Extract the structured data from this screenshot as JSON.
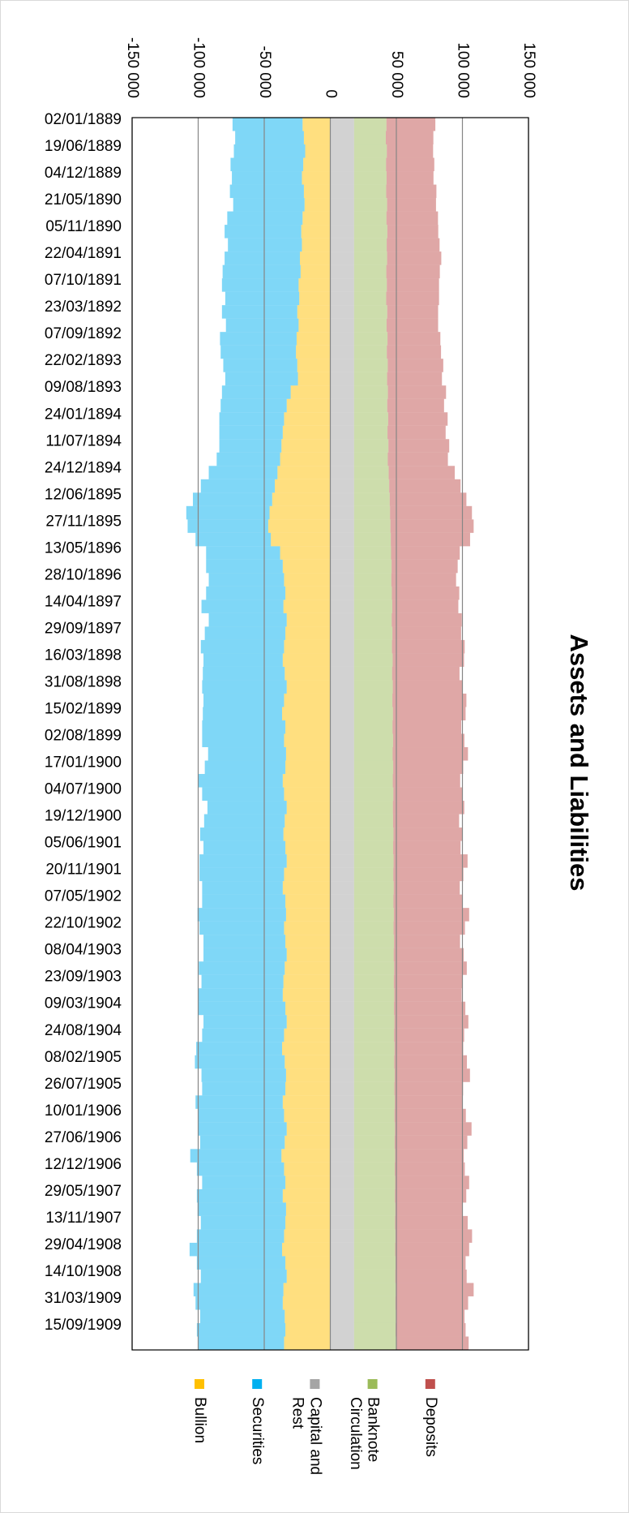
{
  "chart_data": {
    "type": "bar",
    "orientation": "horizontal",
    "stacked": true,
    "title": "Assets and Liabilities",
    "grid": true,
    "legend": "bottom",
    "xlim": [
      -150000,
      150000
    ],
    "xticks": [
      {
        "value": -150000,
        "label": "-150 000"
      },
      {
        "value": -100000,
        "label": "-100 000"
      },
      {
        "value": -50000,
        "label": "-50 000"
      },
      0,
      {
        "value": 50000,
        "label": "50 000"
      },
      {
        "value": 100000,
        "label": "100 000"
      },
      {
        "value": 150000,
        "label": "150 000"
      }
    ],
    "categories": [
      "02/01/1889",
      null,
      "19/06/1889",
      null,
      "04/12/1889",
      null,
      "21/05/1890",
      null,
      "05/11/1890",
      null,
      "22/04/1891",
      null,
      "07/10/1891",
      null,
      "23/03/1892",
      null,
      "07/09/1892",
      null,
      "22/02/1893",
      null,
      "09/08/1893",
      null,
      "24/01/1894",
      null,
      "11/07/1894",
      null,
      "24/12/1894",
      null,
      "12/06/1895",
      null,
      "27/11/1895",
      null,
      "13/05/1896",
      null,
      "28/10/1896",
      null,
      "14/04/1897",
      null,
      "29/09/1897",
      null,
      "16/03/1898",
      null,
      "31/08/1898",
      null,
      "15/02/1899",
      null,
      "02/08/1899",
      null,
      "17/01/1900",
      null,
      "04/07/1900",
      null,
      "19/12/1900",
      null,
      "05/06/1901",
      null,
      "20/11/1901",
      null,
      "07/05/1902",
      null,
      "22/10/1902",
      null,
      "08/04/1903",
      null,
      "23/09/1903",
      null,
      "09/03/1904",
      null,
      "24/08/1904",
      null,
      "08/02/1905",
      null,
      "26/07/1905",
      null,
      "10/01/1906",
      null,
      "27/06/1906",
      null,
      "12/12/1906",
      null,
      "29/05/1907",
      null,
      "13/11/1907",
      null,
      "29/04/1908",
      null,
      "14/10/1908",
      null,
      "31/03/1909",
      null,
      "15/09/1909",
      null
    ],
    "series": [
      {
        "name": "Bullion",
        "color": "#ffc000",
        "values": [
          -21000,
          -20000,
          -19000,
          -20500,
          -21500,
          -20000,
          -19500,
          -21000,
          -22000,
          -21500,
          -23000,
          -22500,
          -24000,
          -23500,
          -25000,
          -24000,
          -25500,
          -26000,
          -25000,
          -24500,
          -30000,
          -33000,
          -35000,
          -36000,
          -37000,
          -38000,
          -40000,
          -42000,
          -44000,
          -46000,
          -47000,
          -45000,
          -38000,
          -36000,
          -35000,
          -34000,
          -35500,
          -33000,
          -34000,
          -35000,
          -36000,
          -34500,
          -33000,
          -35000,
          -36500,
          -34000,
          -35000,
          -33500,
          -34000,
          -36000,
          -35000,
          -33000,
          -34500,
          -35500,
          -34000,
          -33000,
          -35000,
          -36000,
          -34000,
          -33500,
          -35000,
          -34000,
          -33000,
          -34500,
          -35500,
          -36000,
          -34000,
          -33000,
          -35000,
          -36500,
          -34500,
          -33500,
          -34000,
          -36000,
          -35000,
          -33000,
          -34500,
          -37000,
          -35000,
          -34000,
          -36000,
          -33500,
          -34000,
          -35000,
          -36500,
          -34000,
          -33000,
          -35500,
          -36000,
          -34500,
          -34000,
          -35000
        ]
      },
      {
        "name": "Securities",
        "color": "#00b0f0",
        "values": [
          -53000,
          -52000,
          -54000,
          -55000,
          -53000,
          -56000,
          -54000,
          -57000,
          -58000,
          -56000,
          -57000,
          -59000,
          -58000,
          -56000,
          -57000,
          -55000,
          -58000,
          -57000,
          -56000,
          -55000,
          -52000,
          -50000,
          -49000,
          -48000,
          -47000,
          -48000,
          -52000,
          -56000,
          -60000,
          -63000,
          -61000,
          -57000,
          -56000,
          -58000,
          -57000,
          -60000,
          -62000,
          -59000,
          -61000,
          -63000,
          -60000,
          -62000,
          -64000,
          -61000,
          -60000,
          -63000,
          -62000,
          -59000,
          -61000,
          -64000,
          -62000,
          -60000,
          -61000,
          -63000,
          -62000,
          -66000,
          -64000,
          -61000,
          -63000,
          -67000,
          -64000,
          -62000,
          -63000,
          -65000,
          -62000,
          -64000,
          -66000,
          -63000,
          -62000,
          -65000,
          -68000,
          -64000,
          -63000,
          -66000,
          -65000,
          -67000,
          -64000,
          -69000,
          -66000,
          -63000,
          -65000,
          -67000,
          -64000,
          -66000,
          -70000,
          -67000,
          -65000,
          -68000,
          -66000,
          -64000,
          -67000,
          -65000
        ]
      },
      {
        "name": "Capital and Rest",
        "color": "#a5a5a5",
        "values": [
          18000,
          18000,
          18000,
          18000,
          18000,
          18000,
          18000,
          18000,
          18000,
          18000,
          18000,
          18000,
          18000,
          18000,
          18000,
          18000,
          18000,
          18000,
          18000,
          18000,
          18000,
          18000,
          18000,
          18000,
          18000,
          18000,
          18000,
          18000,
          18000,
          18000,
          18000,
          18000,
          18000,
          18000,
          18000,
          18000,
          18000,
          18000,
          18000,
          18000,
          18000,
          18000,
          18000,
          18000,
          18000,
          18000,
          18000,
          18000,
          18000,
          18000,
          18000,
          18000,
          18000,
          18000,
          18000,
          18000,
          18000,
          18000,
          18000,
          18000,
          18000,
          18000,
          18000,
          18000,
          18000,
          18000,
          18000,
          18000,
          18000,
          18000,
          18000,
          18000,
          18000,
          18000,
          18000,
          18000,
          18000,
          18000,
          18000,
          18000,
          18000,
          18000,
          18000,
          18000,
          18000,
          18000,
          18000,
          18000,
          18000,
          18000,
          18000,
          18000
        ]
      },
      {
        "name": "Banknote Circulation",
        "color": "#9bbb59",
        "values": [
          24500,
          24000,
          24800,
          24200,
          24600,
          24300,
          25000,
          24500,
          25200,
          24700,
          25000,
          24400,
          24800,
          24300,
          25100,
          24600,
          25300,
          24800,
          25500,
          25000,
          25600,
          25100,
          25800,
          25300,
          26000,
          25500,
          26200,
          26600,
          27000,
          27200,
          27500,
          27800,
          28000,
          28400,
          28200,
          28600,
          28900,
          28500,
          29000,
          28700,
          29200,
          28800,
          29300,
          29000,
          29400,
          29100,
          29500,
          29200,
          29600,
          29300,
          29700,
          29400,
          29500,
          29800,
          29600,
          29900,
          29700,
          30000,
          29800,
          30100,
          29900,
          30200,
          30000,
          30300,
          30100,
          30400,
          30200,
          30500,
          30300,
          30600,
          30400,
          30700,
          30500,
          30800,
          30600,
          30900,
          30700,
          31000,
          30800,
          31100,
          30900,
          31200,
          31000,
          31300,
          31100,
          31400,
          31200,
          31500,
          31300,
          31600,
          31400,
          31700
        ]
      },
      {
        "name": "Deposits",
        "color": "#c0504d",
        "values": [
          37000,
          36000,
          35000,
          36500,
          35500,
          38000,
          37000,
          39000,
          38500,
          40000,
          41000,
          40500,
          39500,
          40000,
          38500,
          39000,
          40000,
          41000,
          42000,
          41500,
          44000,
          43000,
          45000,
          44000,
          46000,
          45500,
          50000,
          54000,
          58000,
          62000,
          63000,
          60000,
          52000,
          50000,
          49000,
          51000,
          50000,
          53000,
          52000,
          55000,
          54000,
          51000,
          53000,
          56000,
          55000,
          52000,
          54000,
          57000,
          53000,
          51000,
          52000,
          54000,
          50000,
          52000,
          51000,
          56000,
          53000,
          50000,
          52000,
          57000,
          54000,
          50000,
          53000,
          55000,
          52000,
          51000,
          54000,
          56000,
          53000,
          52000,
          55000,
          57000,
          52000,
          51000,
          54000,
          58000,
          55000,
          52000,
          53000,
          56000,
          54000,
          51000,
          55000,
          58000,
          56000,
          53000,
          54000,
          59000,
          55000,
          52000,
          53000,
          55000
        ]
      }
    ]
  }
}
